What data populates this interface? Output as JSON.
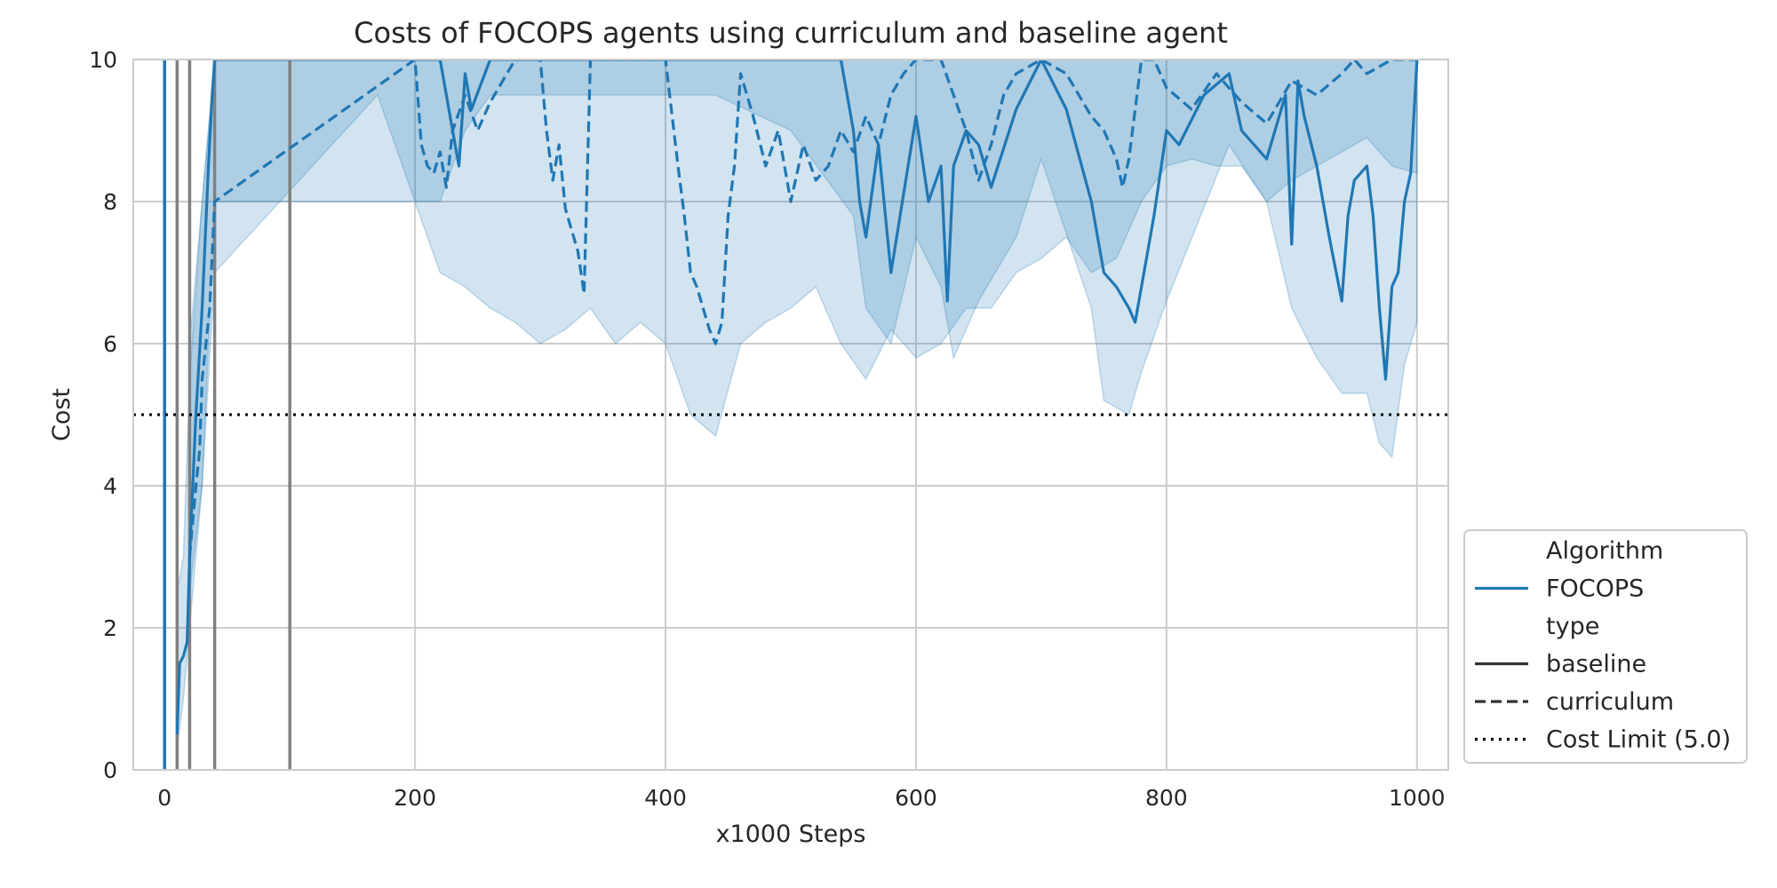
{
  "chart_data": {
    "type": "line",
    "title": "Costs of FOCOPS agents using curriculum and baseline agent",
    "xlabel": "x1000 Steps",
    "ylabel": "Cost",
    "xlim": [
      -25,
      1025
    ],
    "ylim": [
      0,
      10
    ],
    "xticks": [
      0,
      200,
      400,
      600,
      800,
      1000
    ],
    "yticks": [
      0,
      2,
      4,
      6,
      8,
      10
    ],
    "grid": true,
    "legend_position": "lower right, outside plot",
    "legend": [
      {
        "label": "Algorithm",
        "kind": "header"
      },
      {
        "label": "FOCOPS",
        "kind": "solid",
        "color": "#1f77b4"
      },
      {
        "label": "type",
        "kind": "header"
      },
      {
        "label": "baseline",
        "kind": "solid",
        "color": "#333333"
      },
      {
        "label": "curriculum",
        "kind": "dashed",
        "color": "#333333"
      },
      {
        "label": "Cost Limit (5.0)",
        "kind": "dotted",
        "color": "#000000"
      }
    ],
    "cost_limit": 5.0,
    "vertical_lines": [
      {
        "x": 0,
        "color": "#1f77b4"
      },
      {
        "x": 10,
        "color": "#808080"
      },
      {
        "x": 20,
        "color": "#808080"
      },
      {
        "x": 40,
        "color": "#808080"
      },
      {
        "x": 100,
        "color": "#808080"
      }
    ],
    "series": [
      {
        "name": "baseline",
        "algorithm": "FOCOPS",
        "color": "#1f77b4",
        "linestyle": "solid",
        "x": [
          10,
          12,
          15,
          18,
          20,
          25,
          30,
          35,
          38,
          40,
          220,
          230,
          235,
          240,
          245,
          260,
          280,
          300,
          310,
          320,
          330,
          340,
          440,
          460,
          500,
          530,
          540,
          550,
          555,
          560,
          570,
          580,
          600,
          610,
          620,
          625,
          630,
          640,
          650,
          660,
          680,
          700,
          720,
          740,
          750,
          760,
          770,
          775,
          780,
          790,
          800,
          810,
          830,
          850,
          860,
          880,
          895,
          900,
          905,
          910,
          920,
          930,
          940,
          945,
          950,
          960,
          965,
          970,
          975,
          980,
          985,
          990,
          995,
          1000
        ],
        "y": [
          0.5,
          1.5,
          1.6,
          1.8,
          3.0,
          5.0,
          6.5,
          8.5,
          9.5,
          10,
          10,
          9.0,
          8.5,
          9.8,
          9.3,
          10,
          10,
          10,
          10,
          10,
          10,
          10,
          10,
          10,
          10,
          10,
          10,
          9.0,
          8.0,
          7.5,
          8.8,
          7.0,
          9.2,
          8.0,
          8.5,
          6.6,
          8.5,
          9.0,
          8.8,
          8.2,
          9.3,
          10,
          9.3,
          8.0,
          7.0,
          6.8,
          6.5,
          6.3,
          6.8,
          7.8,
          9.0,
          8.8,
          9.5,
          9.8,
          9.0,
          8.6,
          9.5,
          7.4,
          9.7,
          9.2,
          8.5,
          7.5,
          6.6,
          7.8,
          8.3,
          8.5,
          7.8,
          6.5,
          5.5,
          6.8,
          7.0,
          8.0,
          8.4,
          10
        ]
      },
      {
        "name": "curriculum",
        "algorithm": "FOCOPS",
        "color": "#1f77b4",
        "linestyle": "dashed",
        "x": [
          20,
          25,
          28,
          30,
          33,
          36,
          40,
          200,
          205,
          210,
          215,
          220,
          225,
          230,
          240,
          250,
          260,
          280,
          300,
          305,
          310,
          315,
          320,
          330,
          335,
          340,
          400,
          410,
          415,
          420,
          425,
          430,
          435,
          440,
          445,
          450,
          455,
          460,
          470,
          480,
          490,
          500,
          510,
          520,
          530,
          540,
          550,
          560,
          570,
          580,
          590,
          600,
          620,
          640,
          650,
          660,
          670,
          680,
          700,
          720,
          740,
          750,
          760,
          765,
          770,
          780,
          790,
          800,
          820,
          840,
          860,
          880,
          900,
          920,
          940,
          950,
          960,
          980,
          1000
        ],
        "y": [
          3.0,
          4.0,
          4.5,
          5.5,
          6.0,
          6.5,
          8.0,
          10,
          8.8,
          8.5,
          8.4,
          8.7,
          8.2,
          9.0,
          9.5,
          9.0,
          9.4,
          10,
          10,
          9.0,
          8.3,
          8.8,
          7.9,
          7.3,
          6.7,
          10,
          10,
          8.5,
          7.8,
          7.0,
          6.8,
          6.5,
          6.2,
          6.0,
          6.3,
          7.8,
          8.5,
          9.8,
          9.2,
          8.5,
          9.0,
          8.0,
          8.8,
          8.3,
          8.5,
          9.0,
          8.7,
          9.2,
          8.8,
          9.5,
          9.8,
          10,
          10,
          9.0,
          8.3,
          8.8,
          9.5,
          9.8,
          10,
          9.8,
          9.2,
          9.0,
          8.6,
          8.2,
          8.6,
          10,
          10,
          9.6,
          9.3,
          9.8,
          9.4,
          9.1,
          9.7,
          9.5,
          9.8,
          10,
          9.8,
          10,
          10
        ]
      }
    ],
    "bands": [
      {
        "series": "baseline",
        "x": [
          10,
          15,
          20,
          30,
          40,
          220,
          240,
          260,
          300,
          340,
          440,
          500,
          550,
          560,
          580,
          600,
          620,
          630,
          650,
          680,
          700,
          740,
          750,
          760,
          770,
          780,
          800,
          850,
          880,
          900,
          920,
          940,
          960,
          970,
          980,
          990,
          1000
        ],
        "lower": [
          0.3,
          1.0,
          2.0,
          4.0,
          8.0,
          8.0,
          9.0,
          9.5,
          9.5,
          9.5,
          9.5,
          9.0,
          7.8,
          6.5,
          6.0,
          7.5,
          6.8,
          5.8,
          6.6,
          7.5,
          8.6,
          6.5,
          5.2,
          5.1,
          5.0,
          5.6,
          6.6,
          8.8,
          8.0,
          6.5,
          5.8,
          5.3,
          5.3,
          4.6,
          4.4,
          5.7,
          6.3
        ],
        "upper": [
          2.5,
          3.0,
          5.5,
          8.0,
          10,
          10,
          10,
          10,
          10,
          10,
          10,
          10,
          10,
          10,
          10,
          10,
          10,
          10,
          10,
          10,
          10,
          10,
          10,
          10,
          10,
          10,
          10,
          10,
          10,
          10,
          10,
          10,
          10,
          10,
          10,
          10,
          10
        ]
      },
      {
        "series": "curriculum",
        "x": [
          20,
          30,
          40,
          170,
          180,
          200,
          220,
          240,
          260,
          280,
          300,
          320,
          340,
          360,
          380,
          400,
          420,
          440,
          460,
          480,
          500,
          520,
          540,
          560,
          580,
          600,
          620,
          640,
          660,
          680,
          700,
          720,
          740,
          760,
          780,
          800,
          820,
          840,
          860,
          880,
          900,
          920,
          940,
          960,
          980,
          1000
        ],
        "lower": [
          2.5,
          4.0,
          7.0,
          9.5,
          9.0,
          8.0,
          7.0,
          6.8,
          6.5,
          6.3,
          6.0,
          6.2,
          6.5,
          6.0,
          6.3,
          6.0,
          5.0,
          4.7,
          6.0,
          6.3,
          6.5,
          6.8,
          6.0,
          5.5,
          6.2,
          5.8,
          6.0,
          6.5,
          6.5,
          7.0,
          7.2,
          7.5,
          7.0,
          7.2,
          8.0,
          8.5,
          8.6,
          8.5,
          8.5,
          8.0,
          8.3,
          8.5,
          8.7,
          8.9,
          8.5,
          8.4
        ],
        "upper": [
          6.0,
          8.0,
          10,
          10,
          10,
          10,
          10,
          10,
          10,
          10,
          10,
          10,
          10,
          10,
          10,
          10,
          10,
          10,
          10,
          10,
          10,
          10,
          10,
          10,
          10,
          10,
          10,
          10,
          10,
          10,
          10,
          10,
          10,
          10,
          10,
          10,
          10,
          10,
          10,
          10,
          10,
          10,
          10,
          10,
          10,
          10
        ]
      }
    ]
  }
}
